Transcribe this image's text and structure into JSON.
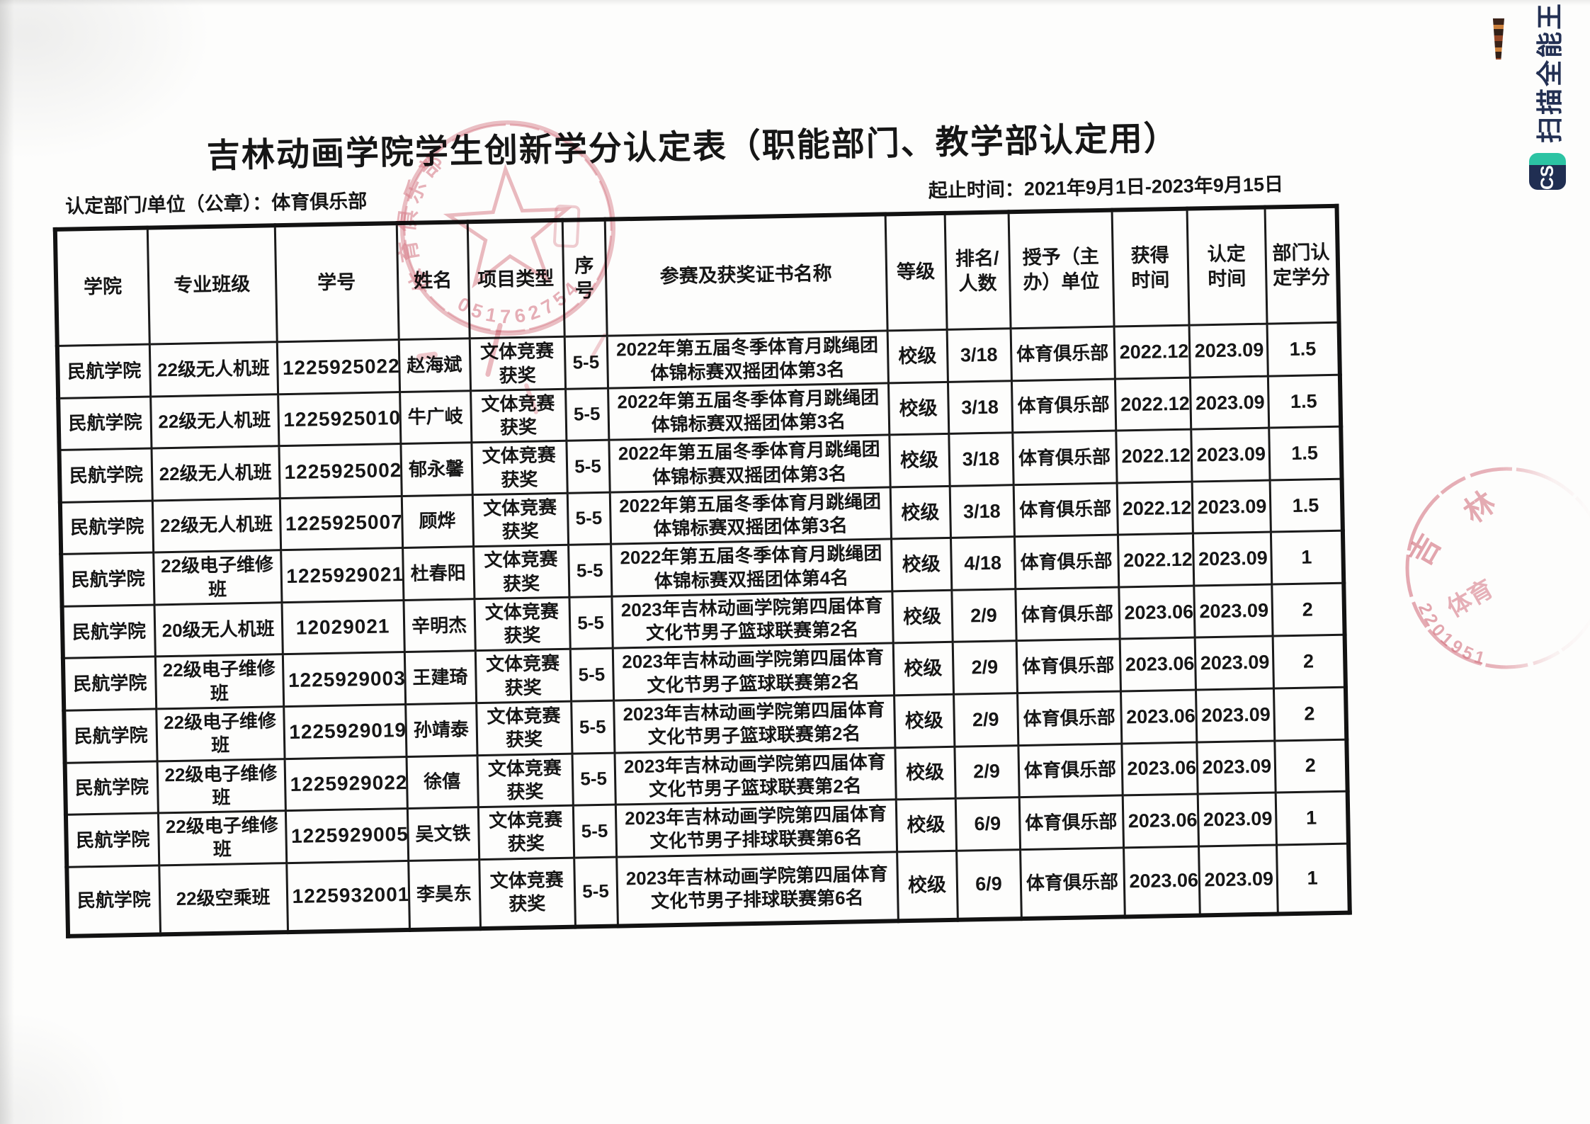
{
  "document": {
    "title": "吉林动画学院学生创新学分认定表（职能部门、教学部认定用）",
    "issuer_label": "认定部门/单位（公章）：",
    "issuer_value": "体育俱乐部",
    "period_label": "起止时间：",
    "period_value": "2021年9月1日-2023年9月15日"
  },
  "table": {
    "headers": [
      "学院",
      "专业班级",
      "学号",
      "姓名",
      "项目类型",
      "序\n号",
      "参赛及获奖证书名称",
      "等级",
      "排名/\n人数",
      "授予（主\n办）单位",
      "获得\n时间",
      "认定\n时间",
      "部门认\n定学分"
    ],
    "rows": [
      [
        "民航学院",
        "22级无人机班",
        "1225925022",
        "赵海斌",
        "文体竞赛获奖",
        "5-5",
        "2022年第五届冬季体育月跳绳团体锦标赛双摇团体第3名",
        "校级",
        "3/18",
        "体育俱乐部",
        "2022.12",
        "2023.09",
        "1.5"
      ],
      [
        "民航学院",
        "22级无人机班",
        "1225925010",
        "牛广岐",
        "文体竞赛获奖",
        "5-5",
        "2022年第五届冬季体育月跳绳团体锦标赛双摇团体第3名",
        "校级",
        "3/18",
        "体育俱乐部",
        "2022.12",
        "2023.09",
        "1.5"
      ],
      [
        "民航学院",
        "22级无人机班",
        "1225925002",
        "郁永馨",
        "文体竞赛获奖",
        "5-5",
        "2022年第五届冬季体育月跳绳团体锦标赛双摇团体第3名",
        "校级",
        "3/18",
        "体育俱乐部",
        "2022.12",
        "2023.09",
        "1.5"
      ],
      [
        "民航学院",
        "22级无人机班",
        "1225925007",
        "顾烨",
        "文体竞赛获奖",
        "5-5",
        "2022年第五届冬季体育月跳绳团体锦标赛双摇团体第3名",
        "校级",
        "3/18",
        "体育俱乐部",
        "2022.12",
        "2023.09",
        "1.5"
      ],
      [
        "民航学院",
        "22级电子维修班",
        "1225929021",
        "杜春阳",
        "文体竞赛获奖",
        "5-5",
        "2022年第五届冬季体育月跳绳团体锦标赛双摇团体第4名",
        "校级",
        "4/18",
        "体育俱乐部",
        "2022.12",
        "2023.09",
        "1"
      ],
      [
        "民航学院",
        "20级无人机班",
        "12029021",
        "辛明杰",
        "文体竞赛获奖",
        "5-5",
        "2023年吉林动画学院第四届体育文化节男子篮球联赛第2名",
        "校级",
        "2/9",
        "体育俱乐部",
        "2023.06",
        "2023.09",
        "2"
      ],
      [
        "民航学院",
        "22级电子维修班",
        "1225929003",
        "王建琦",
        "文体竞赛获奖",
        "5-5",
        "2023年吉林动画学院第四届体育文化节男子篮球联赛第2名",
        "校级",
        "2/9",
        "体育俱乐部",
        "2023.06",
        "2023.09",
        "2"
      ],
      [
        "民航学院",
        "22级电子维修班",
        "1225929019",
        "孙靖泰",
        "文体竞赛获奖",
        "5-5",
        "2023年吉林动画学院第四届体育文化节男子篮球联赛第2名",
        "校级",
        "2/9",
        "体育俱乐部",
        "2023.06",
        "2023.09",
        "2"
      ],
      [
        "民航学院",
        "22级电子维修班",
        "1225929022",
        "徐僖",
        "文体竞赛获奖",
        "5-5",
        "2023年吉林动画学院第四届体育文化节男子篮球联赛第2名",
        "校级",
        "2/9",
        "体育俱乐部",
        "2023.06",
        "2023.09",
        "2"
      ],
      [
        "民航学院",
        "22级电子维修班",
        "1225929005",
        "吴文铁",
        "文体竞赛获奖",
        "5-5",
        "2023年吉林动画学院第四届体育文化节男子排球联赛第6名",
        "校级",
        "6/9",
        "体育俱乐部",
        "2023.06",
        "2023.09",
        "1"
      ],
      [
        "民航学院",
        "22级空乘班",
        "1225932001",
        "李昊东",
        "文体竞赛获奖",
        "5-5",
        "2023年吉林动画学院第四届体育文化节男子排球联赛第6名",
        "校级",
        "6/9",
        "体育俱乐部",
        "2023.06",
        "2023.09",
        "1"
      ]
    ]
  },
  "stamps": {
    "ink_color": "#c23448",
    "header_seal": {
      "org_arc_text": "体育俱乐部",
      "serial_arc_text": "051762754"
    },
    "side_seal": {
      "char_top": "林",
      "char_left": "吉",
      "char_bottom": "体育",
      "serial_arc_text": "2201951"
    }
  },
  "scanner_watermark": {
    "logo_text": "CS",
    "app_name": "扫描全能王"
  }
}
